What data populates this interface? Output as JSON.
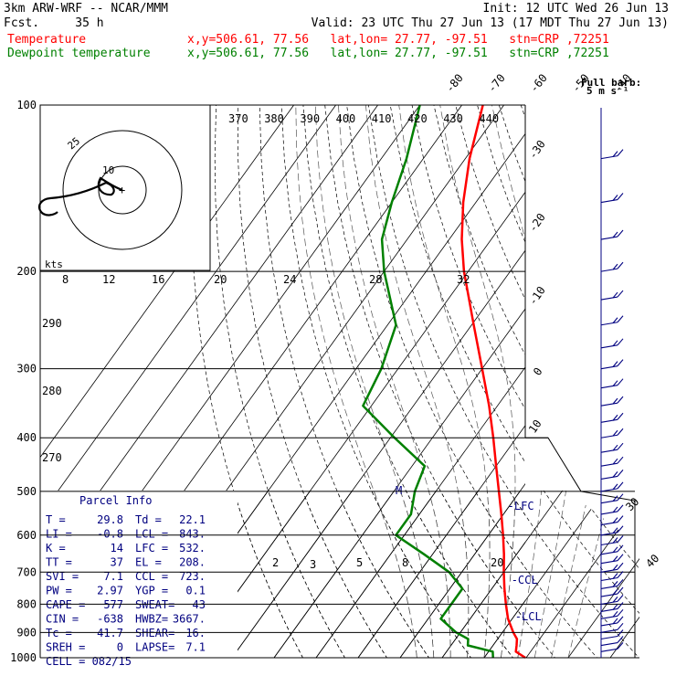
{
  "header": {
    "line1_left": "3km ARW-WRF -- NCAR/MMM",
    "line1_right": "Init: 12 UTC Wed 26 Jun 13",
    "line2_left": "Fcst.     35 h",
    "line2_right": "Valid: 23 UTC Thu 27 Jun 13 (17 MDT Thu 27 Jun 13)",
    "temp_label": "Temperature",
    "temp_info": "x,y=506.61, 77.56   lat,lon= 27.77, -97.51   stn=CRP ,72251",
    "dew_label": "Dewpoint temperature",
    "dew_info": "x,y=506.61, 77.56   lat,lon= 27.77, -97.51   stn=CRP ,72251"
  },
  "colors": {
    "temperature": "#ff0000",
    "dewpoint": "#008000",
    "wind_barbs": "#000080",
    "panel_text": "#000080"
  },
  "wind_legend": {
    "line1": "Full barb:",
    "line2": "5 m s⁻¹"
  },
  "hodograph": {
    "units": "kts",
    "ring_labels": [
      "10",
      "25"
    ]
  },
  "parcel_info": {
    "title": "Parcel Info",
    "rows": [
      [
        "T  =",
        "29.8",
        "Td =",
        "22.1"
      ],
      [
        "LI =",
        "-0.8",
        "LCL =",
        "843."
      ],
      [
        "K  =",
        "14",
        "LFC =",
        "532."
      ],
      [
        "TT =",
        "37",
        "EL  =",
        "208."
      ],
      [
        "SVI =",
        "7.1",
        "CCL =",
        "723."
      ],
      [
        "PW =",
        "2.97",
        "YGP =",
        "0.1"
      ],
      [
        "CAPE =",
        "577",
        "SWEAT=",
        "43"
      ],
      [
        "CIN =",
        "-638",
        "HWBZ=",
        "3667."
      ],
      [
        "Tc =",
        "41.7",
        "SHEAR=",
        "16."
      ],
      [
        "SREH =",
        "0",
        "LAPSE=",
        "7.1"
      ],
      [
        "CELL = 082/15",
        "",
        "",
        ""
      ]
    ]
  },
  "level_labels": {
    "lfc": "-LFC",
    "ccl": "-CCL",
    "lcl": "-LCL",
    "m": "M"
  },
  "chart_data": {
    "type": "line",
    "title": "",
    "ylabel": "",
    "xlabel": "",
    "y_axis": {
      "scale": "log-pressure",
      "units": "hPa",
      "ticks": [
        100,
        200,
        300,
        400,
        500,
        600,
        700,
        800,
        900,
        1000
      ]
    },
    "isotherm_labels": [
      "-80",
      "-70",
      "-60",
      "-50",
      "-40",
      "-30",
      "-20",
      "-10",
      "0",
      "10",
      "30",
      "40"
    ],
    "theta_e_labels": [
      "370",
      "380",
      "390",
      "400",
      "410",
      "420",
      "430",
      "440"
    ],
    "dry_adiabat_labels": [
      "290",
      "280",
      "270"
    ],
    "mixing_ratio_labels_upper": [
      "8",
      "12",
      "16",
      "20",
      "24",
      "28",
      "32"
    ],
    "mixing_ratio_labels_lower": [
      "2",
      "3",
      "5",
      "8",
      "20"
    ],
    "series": [
      {
        "name": "Temperature",
        "points": [
          {
            "p": 1000,
            "t": 29.8
          },
          {
            "p": 975,
            "t": 26.5
          },
          {
            "p": 950,
            "t": 25.6
          },
          {
            "p": 925,
            "t": 24.6
          },
          {
            "p": 900,
            "t": 22.6
          },
          {
            "p": 850,
            "t": 19.0
          },
          {
            "p": 800,
            "t": 16.0
          },
          {
            "p": 750,
            "t": 13.0
          },
          {
            "p": 700,
            "t": 10.0
          },
          {
            "p": 650,
            "t": 7.0
          },
          {
            "p": 600,
            "t": 3.5
          },
          {
            "p": 550,
            "t": -0.5
          },
          {
            "p": 500,
            "t": -5.0
          },
          {
            "p": 450,
            "t": -10.0
          },
          {
            "p": 400,
            "t": -15.5
          },
          {
            "p": 350,
            "t": -22.0
          },
          {
            "p": 300,
            "t": -30.0
          },
          {
            "p": 250,
            "t": -39.5
          },
          {
            "p": 200,
            "t": -51.0
          },
          {
            "p": 175,
            "t": -57.0
          },
          {
            "p": 150,
            "t": -63.0
          },
          {
            "p": 125,
            "t": -69.0
          },
          {
            "p": 100,
            "t": -75.0
          }
        ]
      },
      {
        "name": "Dewpoint temperature",
        "points": [
          {
            "p": 1000,
            "t": 22.1
          },
          {
            "p": 975,
            "t": 21.0
          },
          {
            "p": 950,
            "t": 14.0
          },
          {
            "p": 925,
            "t": 13.0
          },
          {
            "p": 900,
            "t": 9.0
          },
          {
            "p": 850,
            "t": 3.0
          },
          {
            "p": 800,
            "t": 3.0
          },
          {
            "p": 750,
            "t": 3.0
          },
          {
            "p": 700,
            "t": -3.0
          },
          {
            "p": 650,
            "t": -12.0
          },
          {
            "p": 600,
            "t": -22.0
          },
          {
            "p": 550,
            "t": -22.0
          },
          {
            "p": 500,
            "t": -25.0
          },
          {
            "p": 450,
            "t": -27.0
          },
          {
            "p": 400,
            "t": -39.0
          },
          {
            "p": 350,
            "t": -52.0
          },
          {
            "p": 300,
            "t": -54.0
          },
          {
            "p": 250,
            "t": -58.0
          },
          {
            "p": 200,
            "t": -70.0
          },
          {
            "p": 175,
            "t": -76.0
          },
          {
            "p": 150,
            "t": -80.0
          },
          {
            "p": 125,
            "t": -84.0
          },
          {
            "p": 100,
            "t": -90.0
          }
        ]
      }
    ],
    "wind_levels_hPa": [
      1000,
      975,
      950,
      925,
      900,
      875,
      850,
      825,
      800,
      775,
      750,
      725,
      700,
      675,
      650,
      625,
      600,
      575,
      550,
      525,
      500,
      475,
      450,
      425,
      400,
      375,
      350,
      325,
      300,
      275,
      250,
      225,
      200,
      175,
      150,
      125,
      100
    ]
  }
}
